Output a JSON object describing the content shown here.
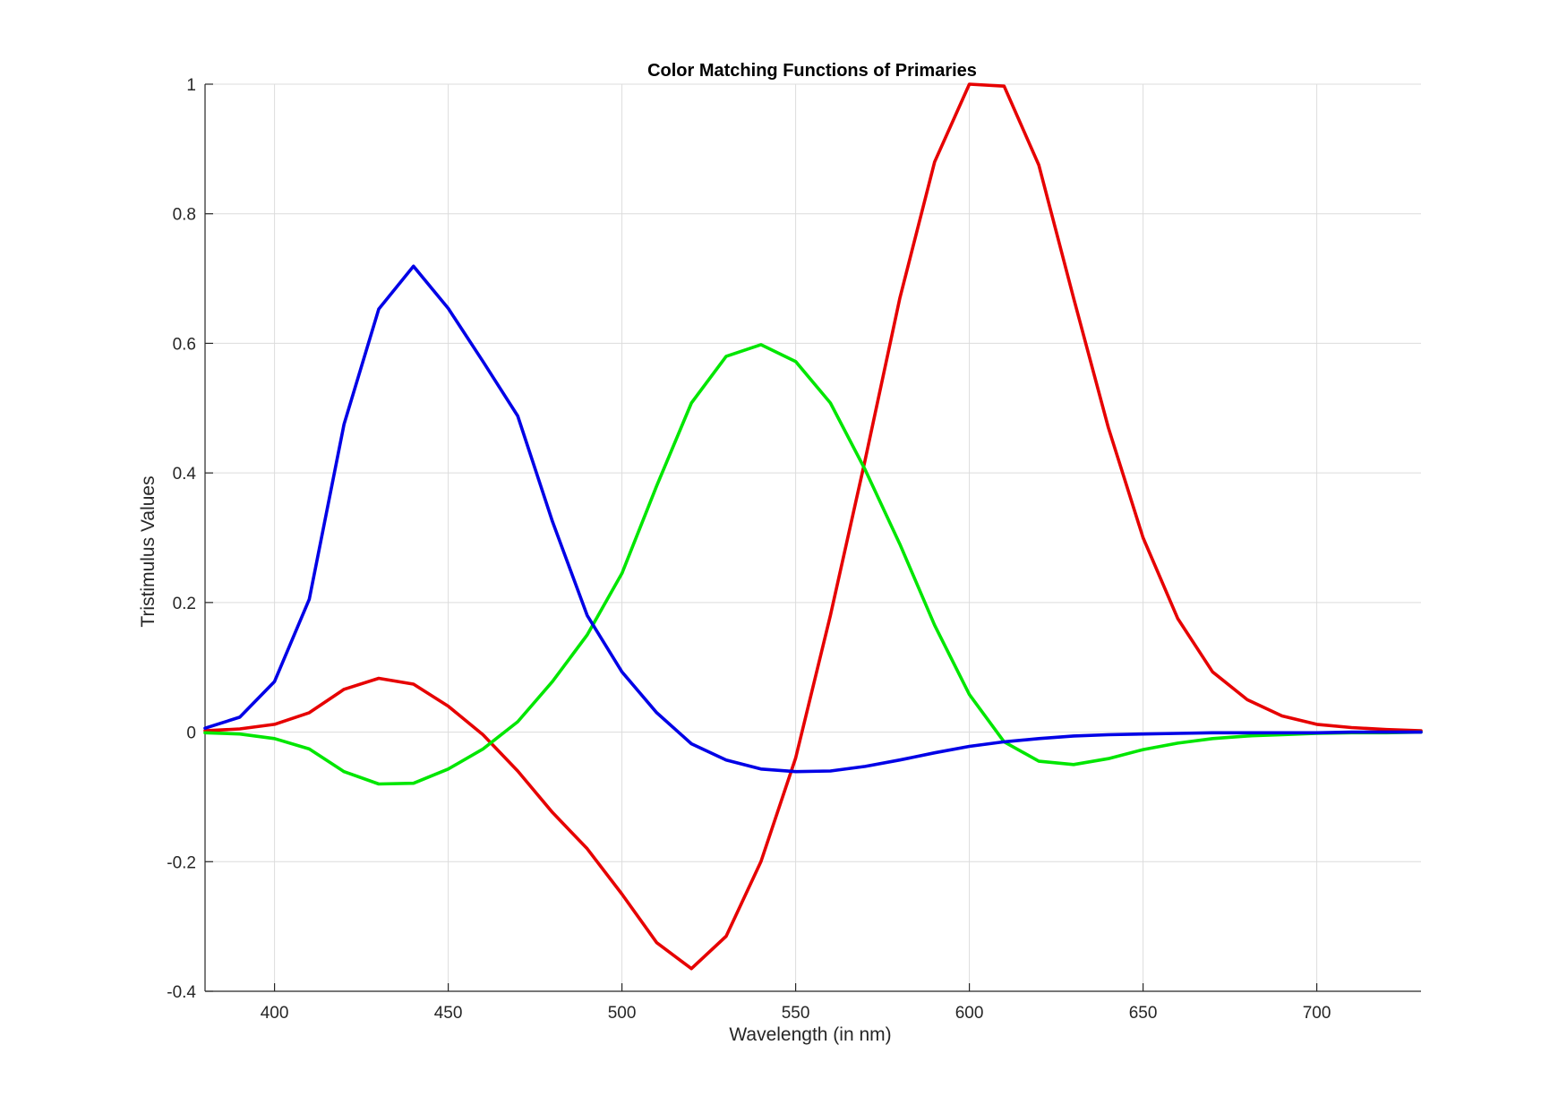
{
  "chart_data": {
    "type": "line",
    "title": "Color Matching Functions of Primaries",
    "xlabel": "Wavelength (in nm)",
    "ylabel": "Tristimulus Values",
    "xlim": [
      380,
      730
    ],
    "ylim": [
      -0.4,
      1
    ],
    "xticks": [
      400,
      450,
      500,
      550,
      600,
      650,
      700
    ],
    "yticks": [
      -0.4,
      -0.2,
      0,
      0.2,
      0.4,
      0.6,
      0.8,
      1
    ],
    "ytick_labels": [
      "-0.4",
      "-0.2",
      "0",
      "0.2",
      "0.4",
      "0.6",
      "0.8",
      "1"
    ],
    "grid": true,
    "x": [
      380,
      390,
      400,
      410,
      420,
      430,
      440,
      450,
      460,
      470,
      480,
      490,
      500,
      510,
      520,
      530,
      540,
      550,
      560,
      570,
      580,
      590,
      600,
      610,
      620,
      630,
      640,
      650,
      660,
      670,
      680,
      690,
      700,
      710,
      720,
      730
    ],
    "series": [
      {
        "color": "#e60000",
        "values": [
          0.002,
          0.005,
          0.012,
          0.03,
          0.066,
          0.083,
          0.074,
          0.04,
          -0.004,
          -0.06,
          -0.124,
          -0.18,
          -0.25,
          -0.325,
          -0.365,
          -0.315,
          -0.2,
          -0.04,
          0.18,
          0.42,
          0.67,
          0.88,
          1.0,
          0.997,
          0.875,
          0.67,
          0.47,
          0.3,
          0.175,
          0.093,
          0.05,
          0.025,
          0.012,
          0.007,
          0.004,
          0.002
        ]
      },
      {
        "color": "#00e600",
        "values": [
          -0.001,
          -0.003,
          -0.01,
          -0.026,
          -0.061,
          -0.08,
          -0.079,
          -0.057,
          -0.026,
          0.016,
          0.078,
          0.15,
          0.245,
          0.38,
          0.508,
          0.58,
          0.598,
          0.572,
          0.508,
          0.405,
          0.29,
          0.165,
          0.058,
          -0.015,
          -0.045,
          -0.05,
          -0.041,
          -0.027,
          -0.017,
          -0.01,
          -0.006,
          -0.004,
          -0.002,
          -0.001,
          -0.001,
          0.0
        ]
      },
      {
        "color": "#0000e6",
        "values": [
          0.006,
          0.023,
          0.078,
          0.205,
          0.475,
          0.653,
          0.719,
          0.654,
          0.572,
          0.488,
          0.325,
          0.18,
          0.093,
          0.03,
          -0.018,
          -0.043,
          -0.057,
          -0.061,
          -0.06,
          -0.053,
          -0.043,
          -0.032,
          -0.022,
          -0.015,
          -0.01,
          -0.006,
          -0.004,
          -0.003,
          -0.002,
          -0.001,
          -0.001,
          -0.001,
          -0.001,
          0.0,
          0.0,
          0.0
        ]
      }
    ]
  }
}
